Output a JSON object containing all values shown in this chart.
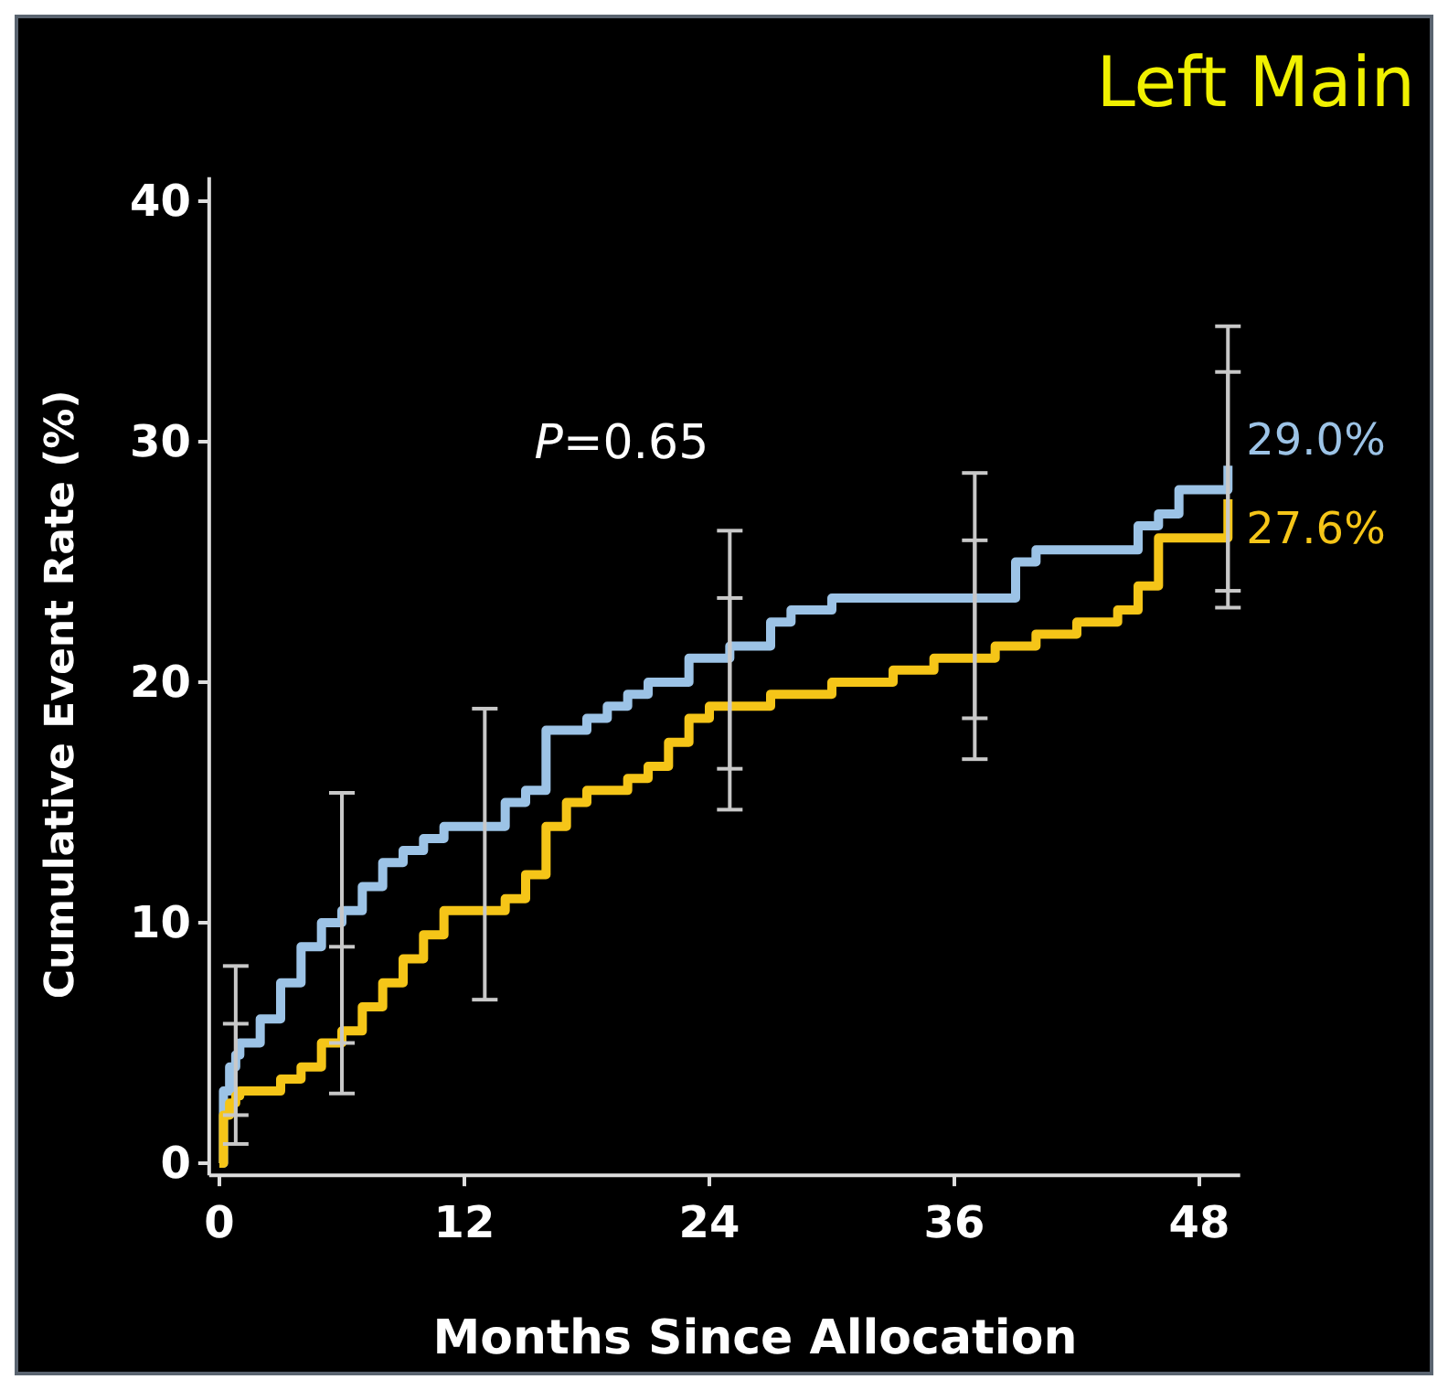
{
  "chart_data": {
    "type": "step",
    "title": "Left Main",
    "xlabel": "Months Since Allocation",
    "ylabel": "Cumulative Event Rate (%)",
    "annotations": [
      "P=0.65"
    ],
    "xlim": [
      -0.5,
      50
    ],
    "xticks": [
      0,
      12,
      24,
      36,
      48
    ],
    "ylim": [
      -0.5,
      41
    ],
    "yticks": [
      0,
      10,
      20,
      30,
      40
    ],
    "grid": false,
    "marker": "none",
    "line_style": "solid",
    "series": [
      {
        "color": "#9cc3e6",
        "x": [
          0,
          0.2,
          0.5,
          0.8,
          1,
          2,
          3,
          4,
          5,
          6,
          7,
          8,
          9,
          10,
          11,
          14,
          15,
          16,
          18,
          19,
          20,
          21,
          23,
          25,
          26,
          27,
          28,
          30,
          37,
          39,
          40,
          45,
          46,
          47,
          49.4
        ],
        "values": [
          0,
          3,
          4,
          4.5,
          5,
          6,
          7.5,
          9,
          10,
          10.5,
          11.5,
          12.5,
          13,
          13.5,
          14,
          15,
          15.5,
          18,
          18.5,
          19,
          19.5,
          20,
          21,
          21.5,
          21.5,
          22.5,
          23,
          23.5,
          23.5,
          25,
          25.5,
          26.5,
          27,
          28,
          29.0
        ],
        "errors": [
          null,
          null,
          null,
          [
            2.0,
            8.2
          ],
          null,
          null,
          null,
          null,
          null,
          [
            5.0,
            15.4
          ],
          null,
          null,
          null,
          null,
          null,
          null,
          null,
          null,
          null,
          null,
          null,
          null,
          null,
          [
            16.4,
            26.3
          ],
          null,
          null,
          null,
          null,
          [
            18.5,
            28.7
          ],
          null,
          null,
          null,
          null,
          null,
          [
            23.1,
            34.8
          ]
        ],
        "value_labels": [
          null,
          null,
          null,
          null,
          null,
          null,
          null,
          null,
          null,
          null,
          null,
          null,
          null,
          null,
          null,
          null,
          null,
          null,
          null,
          null,
          null,
          null,
          null,
          null,
          null,
          null,
          null,
          null,
          null,
          null,
          null,
          null,
          null,
          null,
          "29.0%"
        ]
      },
      {
        "color": "#f5c518",
        "x": [
          0,
          0.2,
          0.5,
          0.8,
          1,
          3,
          4,
          5,
          6,
          7,
          8,
          9,
          10,
          11,
          13,
          14,
          15,
          16,
          17,
          18,
          20,
          21,
          22,
          23,
          24,
          25,
          27,
          30,
          33,
          35,
          37,
          38,
          40,
          42,
          44,
          45,
          46,
          49.4
        ],
        "values": [
          0,
          2,
          2.5,
          2.8,
          3,
          3.5,
          4,
          5,
          5.5,
          6.5,
          7.5,
          8.5,
          9.5,
          10.5,
          10.5,
          11,
          12,
          14,
          15,
          15.5,
          16,
          16.5,
          17.5,
          18.5,
          19,
          19,
          19.5,
          20,
          20.5,
          21,
          21,
          21.5,
          22,
          22.5,
          23,
          24,
          26,
          27.6
        ],
        "errors": [
          null,
          null,
          null,
          [
            0.8,
            5.8
          ],
          null,
          null,
          null,
          null,
          [
            2.9,
            9.0
          ],
          null,
          null,
          null,
          null,
          null,
          [
            6.8,
            18.9
          ],
          null,
          null,
          null,
          null,
          null,
          null,
          null,
          null,
          null,
          null,
          [
            14.7,
            23.5
          ],
          null,
          null,
          null,
          null,
          [
            16.8,
            25.9
          ],
          null,
          null,
          null,
          null,
          null,
          null,
          [
            23.8,
            32.9
          ]
        ],
        "value_labels": [
          null,
          null,
          null,
          null,
          null,
          null,
          null,
          null,
          null,
          null,
          null,
          null,
          null,
          null,
          null,
          null,
          null,
          null,
          null,
          null,
          null,
          null,
          null,
          null,
          null,
          null,
          null,
          null,
          null,
          null,
          null,
          null,
          null,
          null,
          null,
          null,
          null,
          "27.6%"
        ]
      }
    ]
  }
}
